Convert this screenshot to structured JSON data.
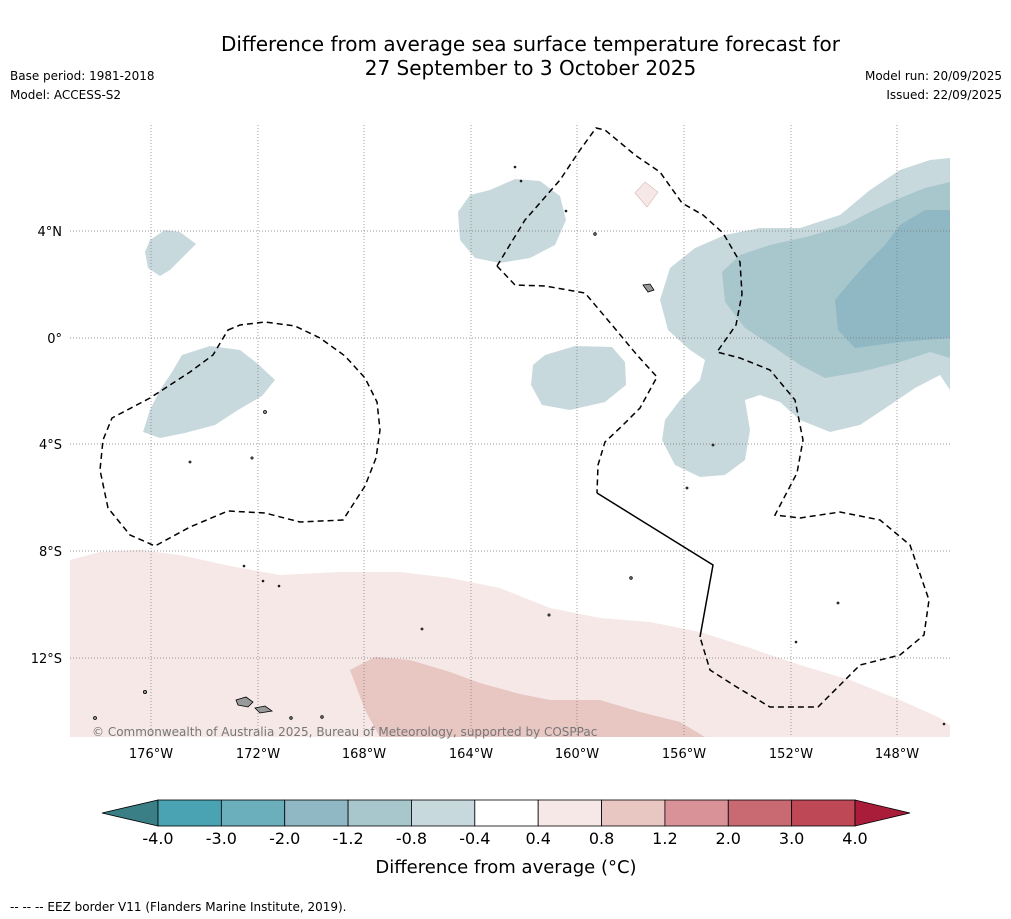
{
  "header": {
    "title_line1": "Difference from average sea surface temperature forecast for",
    "title_line2": "27 September to 3 October 2025",
    "base_period": "Base period: 1981-2018",
    "model": "Model: ACCESS-S2",
    "model_run": "Model run: 20/09/2025",
    "issued": "Issued: 22/09/2025"
  },
  "map": {
    "lon_labels": [
      "176°W",
      "172°W",
      "168°W",
      "164°W",
      "160°W",
      "156°W",
      "152°W",
      "148°W"
    ],
    "lat_labels": [
      "4°N",
      "0°",
      "4°S",
      "8°S",
      "12°S"
    ],
    "copyright": "© Commonwealth of Australia 2025, Bureau of Meteorology, supported by COSPPac"
  },
  "colorbar": {
    "ticks": [
      "-4.0",
      "-3.0",
      "-2.0",
      "-1.2",
      "-0.8",
      "-0.4",
      "0.4",
      "0.8",
      "1.2",
      "2.0",
      "3.0",
      "4.0"
    ],
    "colors": {
      "under": "#3a7e86",
      "bins": [
        "#4aa3b2",
        "#6aafbb",
        "#8fb8c4",
        "#a8c7cd",
        "#c8d9dd",
        "#ffffff",
        "#f5e8e7",
        "#e8c6c2",
        "#d99297",
        "#c96a73",
        "#be4856"
      ],
      "over": "#a91d3a"
    },
    "label": "Difference from average (°C)"
  },
  "footer": {
    "eez_note": "--  --  -- EEZ border V11 (Flanders Marine Institute, 2019)."
  }
}
